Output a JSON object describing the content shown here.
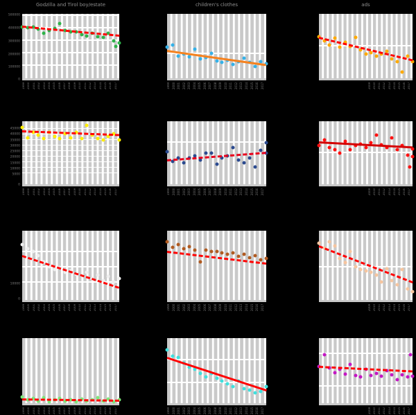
{
  "page": {
    "background": "#000000",
    "grid": {
      "rows": 4,
      "cols": 3
    }
  },
  "x_ticks_shared": [
    "1999",
    "2000",
    "2001",
    "2002",
    "2003",
    "2004",
    "2005",
    "2006",
    "2007",
    "2008",
    "2009",
    "2010",
    "2011",
    "2012",
    "2013",
    "2014",
    "2015",
    "2016",
    "2017"
  ],
  "chart_data": [
    {
      "id": "r1c1",
      "row": 1,
      "col": 1,
      "type": "scatter",
      "title": "Godzilla and Tirol boy/estate",
      "point_color": "#2eb34a",
      "trend": {
        "start_frac": 0.8,
        "end_frac": 0.66,
        "color": "#ff0000",
        "style": "dashed"
      },
      "points": [
        [
          0,
          0.8
        ],
        [
          1,
          0.78
        ],
        [
          2,
          0.8
        ],
        [
          3,
          0.76
        ],
        [
          4,
          0.7
        ],
        [
          5,
          0.74
        ],
        [
          6,
          0.77
        ],
        [
          7,
          0.85
        ],
        [
          8,
          0.74
        ],
        [
          9,
          0.72
        ],
        [
          10,
          0.72
        ],
        [
          11,
          0.68
        ],
        [
          12,
          0.66
        ],
        [
          13,
          0.7
        ],
        [
          14,
          0.64
        ],
        [
          15,
          0.63
        ],
        [
          16,
          0.7
        ],
        [
          17,
          0.58
        ],
        [
          17.4,
          0.5
        ],
        [
          18,
          0.55
        ]
      ],
      "approx_values": [
        400000,
        390000,
        400000,
        380000,
        350000,
        370000,
        385000,
        425000,
        370000,
        360000,
        360000,
        340000,
        330000,
        350000,
        320000,
        315000,
        350000,
        290000,
        275000
      ],
      "ylim": [
        0,
        515000
      ],
      "y_tick_labels": [
        [
          "500000",
          0.97
        ],
        [
          "400000",
          0.775
        ],
        [
          "300000",
          0.58
        ],
        [
          "200000",
          0.385
        ],
        [
          "100000",
          0.19
        ],
        [
          "0",
          0.01
        ]
      ],
      "h_gridlines": [
        0.97,
        0.775,
        0.58,
        0.385,
        0.19
      ],
      "xlabels_visible_from": 0
    },
    {
      "id": "r1c2",
      "row": 1,
      "col": 2,
      "type": "scatter",
      "title": "children's clothes",
      "point_color": "#35b1e8",
      "trend": {
        "start_frac": 0.43,
        "end_frac": 0.21,
        "color": "#f5821f",
        "style": "solid"
      },
      "points": [
        [
          0,
          0.48
        ],
        [
          1,
          0.52
        ],
        [
          2,
          0.34
        ],
        [
          3,
          0.38
        ],
        [
          4,
          0.33
        ],
        [
          5,
          0.45
        ],
        [
          6,
          0.3
        ],
        [
          7,
          0.32
        ],
        [
          8,
          0.39
        ],
        [
          9,
          0.27
        ],
        [
          10,
          0.25
        ],
        [
          11,
          0.28
        ],
        [
          12,
          0.22
        ],
        [
          13,
          0.26
        ],
        [
          14,
          0.31
        ],
        [
          15,
          0.25
        ],
        [
          16,
          0.18
        ],
        [
          17,
          0.26
        ],
        [
          18,
          0.23
        ]
      ],
      "y_axis": "unlabeled",
      "y_tick_labels": [],
      "h_gridlines": [
        0.38
      ],
      "xlabels_visible_from": 0
    },
    {
      "id": "r1c3",
      "row": 1,
      "col": 3,
      "type": "scatter",
      "title": "ads",
      "point_color": "#ffaa00",
      "trend": {
        "start_frac": 0.63,
        "end_frac": 0.28,
        "color": "#ff0000",
        "style": "dashed"
      },
      "points": [
        [
          0,
          0.64
        ],
        [
          1,
          0.58
        ],
        [
          2,
          0.52
        ],
        [
          3,
          0.62
        ],
        [
          4,
          0.48
        ],
        [
          5,
          0.56
        ],
        [
          6,
          0.5
        ],
        [
          7,
          0.63
        ],
        [
          8,
          0.44
        ],
        [
          9,
          0.38
        ],
        [
          10,
          0.4
        ],
        [
          11,
          0.34
        ],
        [
          12,
          0.38
        ],
        [
          13,
          0.42
        ],
        [
          14,
          0.3
        ],
        [
          15,
          0.26
        ],
        [
          16,
          0.1
        ],
        [
          17,
          0.34
        ],
        [
          18,
          0.26
        ]
      ],
      "y_axis": "unlabeled",
      "y_tick_labels": [],
      "h_gridlines": [
        0.5
      ],
      "xlabels_visible_from": 10
    },
    {
      "id": "r2c1",
      "row": 2,
      "col": 1,
      "type": "scatter",
      "title": "",
      "point_color": "#ffee00",
      "trend": {
        "start_frac": 0.84,
        "end_frac": 0.78,
        "color": "#ff0000",
        "style": "dashed"
      },
      "points": [
        [
          0,
          0.9
        ],
        [
          1,
          0.74
        ],
        [
          2,
          0.82
        ],
        [
          3,
          0.78
        ],
        [
          4,
          0.72
        ],
        [
          5,
          0.82
        ],
        [
          6,
          0.76
        ],
        [
          7,
          0.72
        ],
        [
          8,
          0.8
        ],
        [
          9,
          0.74
        ],
        [
          10,
          0.82
        ],
        [
          11,
          0.72
        ],
        [
          12,
          0.93
        ],
        [
          13,
          0.78
        ],
        [
          14,
          0.72
        ],
        [
          15,
          0.7
        ],
        [
          16,
          0.76
        ],
        [
          17,
          0.8
        ],
        [
          18,
          0.7
        ]
      ],
      "approx_values": [
        50000,
        41000,
        45500,
        43000,
        40000,
        45500,
        42000,
        40000,
        44500,
        41000,
        45500,
        40000,
        51500,
        43000,
        40000,
        38500,
        42000,
        44500,
        38500
      ],
      "ylim": [
        0,
        56000
      ],
      "y_tick_labels": [
        [
          "45000",
          0.88
        ],
        [
          "40000",
          0.79
        ],
        [
          "35000",
          0.7
        ],
        [
          "30000",
          0.615
        ],
        [
          "25000",
          0.53
        ],
        [
          "20000",
          0.44
        ],
        [
          "15000",
          0.35
        ],
        [
          "10000",
          0.265
        ],
        [
          "5000",
          0.18
        ],
        [
          "0",
          0.02
        ]
      ],
      "h_gridlines": [
        0.88,
        0.79,
        0.7,
        0.615,
        0.53,
        0.44,
        0.35,
        0.265,
        0.18
      ],
      "xlabels_visible_from": 0
    },
    {
      "id": "r2c2",
      "row": 2,
      "col": 2,
      "type": "scatter",
      "title": "",
      "point_color": "#2b4a8f",
      "trend": {
        "start_frac": 0.38,
        "end_frac": 0.5,
        "color": "#e8001c",
        "style": "dashed"
      },
      "points": [
        [
          0,
          0.52
        ],
        [
          1,
          0.36
        ],
        [
          2,
          0.42
        ],
        [
          3,
          0.34
        ],
        [
          4,
          0.42
        ],
        [
          5,
          0.45
        ],
        [
          6,
          0.38
        ],
        [
          7,
          0.5
        ],
        [
          8,
          0.49
        ],
        [
          9,
          0.32
        ],
        [
          10,
          0.42
        ],
        [
          11,
          0.45
        ],
        [
          12,
          0.58
        ],
        [
          13,
          0.38
        ],
        [
          14,
          0.34
        ],
        [
          15,
          0.42
        ],
        [
          16,
          0.28
        ],
        [
          17,
          0.54
        ],
        [
          18,
          0.5
        ],
        [
          18,
          0.66
        ]
      ],
      "y_axis": "unlabeled",
      "y_tick_labels": [],
      "h_gridlines": [
        0.66
      ],
      "xlabels_visible_from": 0
    },
    {
      "id": "r2c3",
      "row": 2,
      "col": 3,
      "type": "scatter",
      "title": "",
      "point_color": "#ff1111",
      "trend": {
        "start_frac": 0.66,
        "end_frac": 0.58,
        "color": "#d40000",
        "style": "solid"
      },
      "points": [
        [
          0,
          0.62
        ],
        [
          1,
          0.7
        ],
        [
          2,
          0.58
        ],
        [
          3,
          0.55
        ],
        [
          4,
          0.5
        ],
        [
          5,
          0.68
        ],
        [
          6,
          0.55
        ],
        [
          7,
          0.62
        ],
        [
          8,
          0.64
        ],
        [
          9,
          0.58
        ],
        [
          10,
          0.66
        ],
        [
          11,
          0.78
        ],
        [
          12,
          0.63
        ],
        [
          13,
          0.58
        ],
        [
          14,
          0.74
        ],
        [
          15,
          0.55
        ],
        [
          16,
          0.62
        ],
        [
          17,
          0.46
        ],
        [
          17.5,
          0.28
        ],
        [
          18,
          0.56
        ],
        [
          18,
          0.44
        ]
      ],
      "y_axis": "unlabeled",
      "y_tick_labels": [],
      "h_gridlines": [
        0.49
      ],
      "xlabels_visible_from": 10
    },
    {
      "id": "r3c1",
      "row": 3,
      "col": 1,
      "type": "scatter",
      "title": "",
      "point_color": "#efefef",
      "trend": {
        "start_frac": 0.64,
        "end_frac": 0.18,
        "color": "#ff0000",
        "style": "dashed"
      },
      "points": [
        [
          0,
          0.8
        ],
        [
          1,
          0.74
        ],
        [
          2,
          0.7
        ],
        [
          3,
          0.64
        ],
        [
          4,
          0.55
        ],
        [
          5,
          0.48
        ],
        [
          6,
          0.44
        ],
        [
          7,
          0.47
        ],
        [
          8,
          0.4
        ],
        [
          9,
          0.42
        ],
        [
          10,
          0.37
        ],
        [
          11,
          0.35
        ],
        [
          12,
          0.4
        ],
        [
          13,
          0.31
        ],
        [
          14,
          0.36
        ],
        [
          15,
          0.28
        ],
        [
          16,
          0.34
        ],
        [
          17,
          0.26
        ],
        [
          18,
          0.31
        ]
      ],
      "approx_values": [
        35000,
        32500,
        30500,
        27500,
        23500,
        20500,
        18500,
        20000,
        17000,
        17500,
        15500,
        14500,
        17000,
        12500,
        15000,
        11500,
        14000,
        10500,
        12500
      ],
      "ylim": [
        0,
        44000
      ],
      "y_tick_labels": [
        [
          "10000",
          0.25
        ],
        [
          "0",
          0.03
        ]
      ],
      "h_gridlines": [
        0.69,
        0.47,
        0.25
      ],
      "xlabels_visible_from": 0
    },
    {
      "id": "r3c2",
      "row": 3,
      "col": 2,
      "type": "scatter",
      "title": "",
      "point_color": "#b05a20",
      "trend": {
        "start_frac": 0.7,
        "end_frac": 0.53,
        "color": "#ff0000",
        "style": "dashed"
      },
      "points": [
        [
          0,
          0.84
        ],
        [
          1,
          0.76
        ],
        [
          2,
          0.8
        ],
        [
          3,
          0.74
        ],
        [
          4,
          0.77
        ],
        [
          5,
          0.72
        ],
        [
          6,
          0.55
        ],
        [
          7,
          0.72
        ],
        [
          8,
          0.7
        ],
        [
          9,
          0.7
        ],
        [
          10,
          0.68
        ],
        [
          11,
          0.66
        ],
        [
          12,
          0.68
        ],
        [
          13,
          0.63
        ],
        [
          14,
          0.66
        ],
        [
          15,
          0.61
        ],
        [
          16,
          0.64
        ],
        [
          17,
          0.58
        ],
        [
          18,
          0.6
        ]
      ],
      "y_axis": "unlabeled",
      "y_tick_labels": [],
      "h_gridlines": [],
      "xlabels_visible_from": 0
    },
    {
      "id": "r3c3",
      "row": 3,
      "col": 3,
      "type": "scatter",
      "title": "",
      "point_color": "#f6c59f",
      "trend": {
        "start_frac": 0.78,
        "end_frac": 0.26,
        "color": "#ff0000",
        "style": "dashed"
      },
      "points": [
        [
          0,
          0.82
        ],
        [
          1,
          0.75
        ],
        [
          2,
          0.84
        ],
        [
          3,
          0.78
        ],
        [
          4,
          0.6
        ],
        [
          5,
          0.54
        ],
        [
          6,
          0.7
        ],
        [
          7,
          0.48
        ],
        [
          8,
          0.44
        ],
        [
          9,
          0.42
        ],
        [
          10,
          0.4
        ],
        [
          11,
          0.36
        ],
        [
          12,
          0.26
        ],
        [
          13,
          0.45
        ],
        [
          14,
          0.28
        ],
        [
          15,
          0.22
        ],
        [
          16,
          0.44
        ],
        [
          17,
          0.16
        ],
        [
          18,
          0.12
        ]
      ],
      "y_axis": "unlabeled",
      "y_tick_labels": [],
      "h_gridlines": [
        0.47
      ],
      "xlabels_visible_from": 10
    },
    {
      "id": "r4c1",
      "row": 4,
      "col": 1,
      "type": "scatter",
      "title": "",
      "point_color": "#7ee87a",
      "trend": {
        "start_frac": 0.055,
        "end_frac": 0.035,
        "color": "#ff0000",
        "style": "dashed"
      },
      "points": [
        [
          0,
          0.1
        ],
        [
          1,
          0.05
        ],
        [
          2,
          0.07
        ],
        [
          3,
          0.03
        ],
        [
          4,
          0.08
        ],
        [
          5,
          0.02
        ],
        [
          6,
          0.05
        ],
        [
          7,
          0.07
        ],
        [
          8,
          0.03
        ],
        [
          9,
          0.05
        ],
        [
          10,
          0.02
        ],
        [
          11,
          0.06
        ],
        [
          12,
          0.03
        ],
        [
          13,
          0.05
        ],
        [
          14,
          0.08
        ],
        [
          15,
          0.03
        ],
        [
          16,
          0.06
        ],
        [
          17,
          0.02
        ],
        [
          18,
          0.05
        ]
      ],
      "y_axis": "unlabeled",
      "y_tick_labels": [],
      "h_gridlines": [],
      "xlabels_visible_from": 0
    },
    {
      "id": "r4c2",
      "row": 4,
      "col": 2,
      "type": "scatter",
      "title": "",
      "point_color": "#3fe0de",
      "trend": {
        "start_frac": 0.7,
        "end_frac": 0.2,
        "color": "#ff0000",
        "style": "solid"
      },
      "points": [
        [
          0,
          0.82
        ],
        [
          1,
          0.72
        ],
        [
          2,
          0.7
        ],
        [
          3,
          0.62
        ],
        [
          4,
          0.55
        ],
        [
          5,
          0.52
        ],
        [
          6,
          0.46
        ],
        [
          7,
          0.4
        ],
        [
          8,
          0.46
        ],
        [
          9,
          0.38
        ],
        [
          10,
          0.34
        ],
        [
          11,
          0.3
        ],
        [
          12,
          0.26
        ],
        [
          13,
          0.34
        ],
        [
          14,
          0.22
        ],
        [
          15,
          0.2
        ],
        [
          16,
          0.16
        ],
        [
          17,
          0.18
        ],
        [
          18,
          0.26
        ]
      ],
      "y_axis": "unlabeled",
      "y_tick_labels": [],
      "h_gridlines": [
        0.66,
        0.31
      ],
      "xlabels_visible_from": 0
    },
    {
      "id": "r4c3",
      "row": 4,
      "col": 3,
      "type": "scatter",
      "title": "",
      "point_color": "#c318c3",
      "trend": {
        "start_frac": 0.56,
        "end_frac": 0.49,
        "color": "#ff0000",
        "style": "dashed"
      },
      "points": [
        [
          0,
          0.56
        ],
        [
          1,
          0.74
        ],
        [
          2,
          0.54
        ],
        [
          3,
          0.47
        ],
        [
          4,
          0.52
        ],
        [
          5,
          0.45
        ],
        [
          6,
          0.6
        ],
        [
          7,
          0.43
        ],
        [
          8,
          0.4
        ],
        [
          9,
          0.52
        ],
        [
          10,
          0.43
        ],
        [
          11,
          0.46
        ],
        [
          12,
          0.41
        ],
        [
          13,
          0.5
        ],
        [
          14,
          0.44
        ],
        [
          15,
          0.36
        ],
        [
          16,
          0.44
        ],
        [
          17,
          0.4
        ],
        [
          17.6,
          0.74
        ],
        [
          18,
          0.42
        ]
      ],
      "y_axis": "unlabeled",
      "y_tick_labels": [],
      "h_gridlines": [
        0.76,
        0.26
      ],
      "xlabels_visible_from": 10
    }
  ]
}
